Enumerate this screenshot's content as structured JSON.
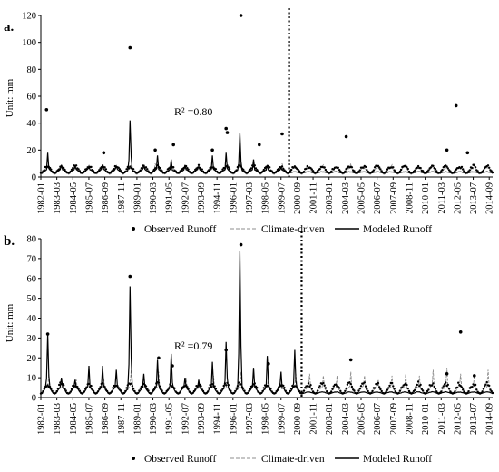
{
  "colors": {
    "observed": "#000000",
    "climate": "#8c8c8c",
    "modeled": "#000000",
    "divider": "#000000"
  },
  "legend": {
    "observed": "Observed Runoff",
    "climate": "Climate-driven",
    "modeled": "Modeled Runoff"
  },
  "chart_data": [
    {
      "type": "line",
      "panel_label": "a.",
      "ylabel": "Unit: mm",
      "ylim": [
        0,
        120
      ],
      "yticks": [
        0,
        20,
        40,
        60,
        80,
        100,
        120
      ],
      "annotation": "R² =0.80",
      "divider_date": "2000-02",
      "x_range": [
        "1982-01",
        "2014-12"
      ],
      "xtick_labels": [
        "1982-01",
        "1983-03",
        "1984-05",
        "1985-07",
        "1986-09",
        "1987-11",
        "1989-01",
        "1990-03",
        "1991-05",
        "1992-07",
        "1993-09",
        "1994-11",
        "1996-01",
        "1997-03",
        "1998-05",
        "1999-07",
        "2000-09",
        "2001-11",
        "2003-01",
        "2004-03",
        "2005-05",
        "2006-07",
        "2007-09",
        "2008-11",
        "2010-01",
        "2011-03",
        "2012-05",
        "2013-07",
        "2014-09"
      ],
      "series": [
        {
          "name": "Observed Runoff",
          "style": "dots",
          "points": [
            [
              "1982-06",
              50
            ],
            [
              "1986-08",
              18
            ],
            [
              "1988-07",
              96
            ],
            [
              "1990-05",
              20
            ],
            [
              "1991-09",
              24
            ],
            [
              "1994-07",
              20
            ],
            [
              "1995-07",
              36
            ],
            [
              "1995-08",
              33
            ],
            [
              "1996-08",
              120
            ],
            [
              "1997-12",
              24
            ],
            [
              "1999-08",
              32
            ],
            [
              "2004-04",
              30
            ],
            [
              "2011-08",
              20
            ],
            [
              "2012-04",
              53
            ],
            [
              "2013-02",
              18
            ]
          ],
          "baseline_low": 3,
          "baseline_high": 9
        },
        {
          "name": "Climate-driven",
          "style": "dashed",
          "baseline_low": 2,
          "baseline_high": 8,
          "peaks": [
            [
              "1988-08",
              9
            ],
            [
              "1990-05",
              10
            ],
            [
              "1996-08",
              11
            ],
            [
              "1999-08",
              10
            ],
            [
              "2002-08",
              9
            ],
            [
              "2004-08",
              10
            ],
            [
              "2007-08",
              9
            ],
            [
              "2010-08",
              9
            ],
            [
              "2013-08",
              10
            ]
          ]
        },
        {
          "name": "Modeled Runoff",
          "style": "solid",
          "baseline_low": 3,
          "baseline_high": 6,
          "peaks": [
            [
              "1982-07",
              18
            ],
            [
              "1983-07",
              9
            ],
            [
              "1984-07",
              8
            ],
            [
              "1985-07",
              8
            ],
            [
              "1986-07",
              9
            ],
            [
              "1987-07",
              8
            ],
            [
              "1988-07",
              42
            ],
            [
              "1989-07",
              9
            ],
            [
              "1990-07",
              16
            ],
            [
              "1991-07",
              13
            ],
            [
              "1992-07",
              9
            ],
            [
              "1993-07",
              8
            ],
            [
              "1994-07",
              16
            ],
            [
              "1995-07",
              18
            ],
            [
              "1996-07",
              33
            ],
            [
              "1997-07",
              13
            ],
            [
              "1998-07",
              9
            ],
            [
              "1999-07",
              7
            ]
          ],
          "post_divider_high": 4
        }
      ]
    },
    {
      "type": "line",
      "panel_label": "b.",
      "ylabel": "Unit: mm",
      "ylim": [
        0,
        80
      ],
      "yticks": [
        0,
        10,
        20,
        30,
        40,
        50,
        60,
        70,
        80
      ],
      "annotation": "R² =0.79",
      "divider_date": "2001-01",
      "x_range": [
        "1982-01",
        "2014-12"
      ],
      "xtick_labels": [
        "1982-01",
        "1983-03",
        "1984-05",
        "1985-07",
        "1986-09",
        "1987-11",
        "1989-01",
        "1990-03",
        "1991-05",
        "1992-07",
        "1993-09",
        "1994-11",
        "1996-01",
        "1997-03",
        "1998-05",
        "1999-07",
        "2000-09",
        "2001-11",
        "2003-01",
        "2004-03",
        "2005-05",
        "2006-07",
        "2007-09",
        "2008-11",
        "2010-01",
        "2011-03",
        "2012-05",
        "2013-07",
        "2014-09"
      ],
      "series": [
        {
          "name": "Observed Runoff",
          "style": "dots",
          "points": [
            [
              "1982-07",
              32
            ],
            [
              "1988-07",
              61
            ],
            [
              "1990-08",
              20
            ],
            [
              "1991-08",
              16
            ],
            [
              "1995-07",
              24
            ],
            [
              "1996-08",
              77
            ],
            [
              "1998-08",
              17
            ],
            [
              "2004-08",
              19
            ],
            [
              "2011-08",
              12
            ],
            [
              "2012-08",
              33
            ],
            [
              "2013-08",
              11
            ]
          ],
          "baseline_low": 2,
          "baseline_high": 8
        },
        {
          "name": "Climate-driven",
          "style": "dashed",
          "baseline_low": 2,
          "baseline_high": 6,
          "peaks": [
            [
              "1982-08",
              12
            ],
            [
              "1984-08",
              9
            ],
            [
              "1986-08",
              10
            ],
            [
              "1988-08",
              14
            ],
            [
              "1990-08",
              13
            ],
            [
              "1992-08",
              10
            ],
            [
              "1994-08",
              11
            ],
            [
              "1996-08",
              13
            ],
            [
              "1998-08",
              10
            ],
            [
              "2000-08",
              12
            ],
            [
              "2001-08",
              12
            ],
            [
              "2002-08",
              11
            ],
            [
              "2003-08",
              11
            ],
            [
              "2004-08",
              13
            ],
            [
              "2005-08",
              11
            ],
            [
              "2006-08",
              9
            ],
            [
              "2007-08",
              11
            ],
            [
              "2008-08",
              12
            ],
            [
              "2009-08",
              11
            ],
            [
              "2010-08",
              14
            ],
            [
              "2011-08",
              15
            ],
            [
              "2012-08",
              12
            ],
            [
              "2013-08",
              11
            ],
            [
              "2014-08",
              14
            ]
          ]
        },
        {
          "name": "Modeled Runoff",
          "style": "solid",
          "baseline_low": 2,
          "baseline_high": 6,
          "peaks": [
            [
              "1982-07",
              32
            ],
            [
              "1983-07",
              10
            ],
            [
              "1984-07",
              9
            ],
            [
              "1985-07",
              16
            ],
            [
              "1986-07",
              16
            ],
            [
              "1987-07",
              14
            ],
            [
              "1988-07",
              56
            ],
            [
              "1989-07",
              12
            ],
            [
              "1990-07",
              19
            ],
            [
              "1991-07",
              22
            ],
            [
              "1992-07",
              10
            ],
            [
              "1993-07",
              9
            ],
            [
              "1994-07",
              18
            ],
            [
              "1995-07",
              28
            ],
            [
              "1996-07",
              74
            ],
            [
              "1997-07",
              15
            ],
            [
              "1998-07",
              21
            ],
            [
              "1999-07",
              13
            ],
            [
              "2000-07",
              24
            ]
          ],
          "post_divider_high": 3
        }
      ]
    }
  ]
}
